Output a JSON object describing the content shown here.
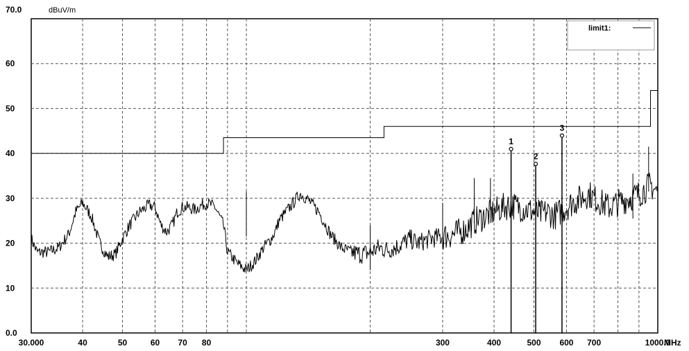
{
  "chart_data": {
    "type": "line",
    "ylabel": "dBuV/m",
    "xlabel": "MHz",
    "x_scale": "log",
    "xlim": [
      30,
      1000
    ],
    "ylim": [
      0,
      70
    ],
    "grid": true,
    "y_ticks": [
      {
        "value": 70,
        "label": "70.0"
      },
      {
        "value": 60,
        "label": "60"
      },
      {
        "value": 50,
        "label": "50"
      },
      {
        "value": 40,
        "label": "40"
      },
      {
        "value": 30,
        "label": "30"
      },
      {
        "value": 20,
        "label": "20"
      },
      {
        "value": 10,
        "label": "10"
      },
      {
        "value": 0,
        "label": "0.0"
      }
    ],
    "x_ticks": [
      {
        "value": 30,
        "label": "30.000"
      },
      {
        "value": 40,
        "label": "40"
      },
      {
        "value": 50,
        "label": "50"
      },
      {
        "value": 60,
        "label": "60"
      },
      {
        "value": 70,
        "label": "70"
      },
      {
        "value": 80,
        "label": "80"
      },
      {
        "value": 300,
        "label": "300"
      },
      {
        "value": 400,
        "label": "400"
      },
      {
        "value": 500,
        "label": "500"
      },
      {
        "value": 600,
        "label": "600"
      },
      {
        "value": 700,
        "label": "700"
      },
      {
        "value": 1000,
        "label": "1000.0"
      }
    ],
    "x_grid": [
      30,
      40,
      50,
      60,
      70,
      80,
      90,
      100,
      200,
      300,
      400,
      500,
      600,
      700,
      800,
      900,
      1000
    ],
    "legend": {
      "label": "limit1:",
      "position": "top-right"
    },
    "limit": {
      "name": "limit1",
      "x": [
        30,
        88,
        88,
        216,
        216,
        960,
        960,
        1000
      ],
      "y": [
        40,
        40,
        43.5,
        43.5,
        46,
        46,
        54,
        54
      ]
    },
    "measurement": {
      "x": [
        30,
        31,
        33,
        35,
        37,
        38.5,
        40,
        42,
        44,
        46,
        48,
        50,
        52,
        55,
        58,
        60,
        62,
        64,
        66,
        68,
        70,
        72,
        75,
        78,
        80,
        84,
        88,
        90,
        95,
        100,
        105,
        110,
        115,
        118,
        120,
        125,
        130,
        135,
        140,
        150,
        160,
        170,
        180,
        190,
        200,
        210,
        220,
        230,
        240,
        250,
        260,
        270,
        280,
        300,
        320,
        340,
        360,
        380,
        400,
        420,
        440,
        460,
        480,
        500,
        520,
        540,
        560,
        580,
        600,
        620,
        650,
        680,
        700,
        730,
        760,
        800,
        850,
        900,
        930,
        960,
        980,
        1000
      ],
      "y": [
        21,
        18,
        18,
        19,
        22,
        27,
        29,
        26,
        20,
        17,
        17.5,
        21,
        24,
        27,
        28.5,
        28,
        24,
        22.5,
        24,
        27,
        28,
        28,
        27.5,
        28.5,
        29,
        28,
        24,
        18,
        15.5,
        14,
        16,
        19,
        21,
        23,
        25,
        27,
        29,
        31,
        30,
        27,
        22,
        19,
        18,
        17.5,
        18,
        19,
        18.5,
        19,
        20,
        21,
        20,
        20.5,
        21,
        21.5,
        22,
        23,
        25,
        26,
        27,
        28,
        28.5,
        28,
        27.5,
        27,
        26.5,
        27,
        26,
        27,
        28,
        29,
        30,
        31,
        30,
        29,
        28,
        29,
        30,
        31,
        32,
        33,
        32,
        31.5
      ]
    },
    "spikes": [
      {
        "x": 100,
        "y": 31.5
      },
      {
        "x": 200,
        "y": 24
      },
      {
        "x": 300,
        "y": 29
      },
      {
        "x": 358,
        "y": 34.5
      },
      {
        "x": 392,
        "y": 34.5
      },
      {
        "x": 440,
        "y": 40.5
      },
      {
        "x": 505,
        "y": 37
      },
      {
        "x": 585,
        "y": 43
      },
      {
        "x": 870,
        "y": 35.5
      },
      {
        "x": 950,
        "y": 41.5
      }
    ],
    "markers": [
      {
        "label": "1",
        "x": 440,
        "y": 40.5
      },
      {
        "label": "2",
        "x": 505,
        "y": 37.2
      },
      {
        "label": "3",
        "x": 585,
        "y": 43.5
      }
    ]
  }
}
